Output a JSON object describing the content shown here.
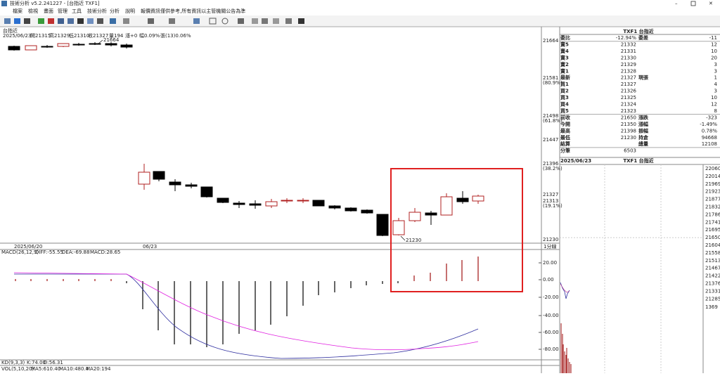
{
  "window": {
    "title": "技術分析 v5.2.241227 - [台指近 TXF1]"
  },
  "menu": [
    "檔案",
    "檢視",
    "畫面",
    "管理",
    "工具",
    "技術分析",
    "分析",
    "說明"
  ],
  "notice": "報價資訊僅供參考,所有資訊以主管機關公告為準",
  "chart": {
    "symbol": "台指近",
    "header": [
      "2025/06/23",
      "開21315",
      "高21329",
      "低21310",
      "收21327",
      "量194",
      "漲+0",
      "幅0.09%",
      "張(13)0.06%"
    ],
    "price_axis": [
      "21664",
      "21581",
      "(80.9%)",
      "21498",
      "(61.8%)",
      "21447",
      "21396",
      "(38.2%)",
      "21327",
      "21313",
      "(19.1%)",
      "21230"
    ],
    "high_label": "21664",
    "low_label": "21230",
    "dates": [
      "2025/06/20",
      "06/23"
    ],
    "period": "1分線"
  },
  "macd": {
    "label": [
      "MACD(26,12,9)",
      "DIFF:-55.55",
      "DEA:-69.88",
      "MACD:28.65"
    ],
    "axis": [
      "20.00",
      "0.00",
      "-20.00",
      "-40.00",
      "-60.00",
      "-80.00"
    ]
  },
  "kd": [
    "KD(9,3,3)",
    "K:74.00",
    "D:56.31"
  ],
  "vol": [
    "VOL(5,10,20)",
    "MA5:610.40",
    "MA10:480.4",
    "MA20:194"
  ],
  "quote": {
    "title": "TXF1 台指近",
    "rows": [
      {
        "a": "委比",
        "b": "-12.94%",
        "c": "委差",
        "d": "-11"
      },
      {
        "a": "賣5",
        "b": "21332",
        "d": "12"
      },
      {
        "a": "賣4",
        "b": "21331",
        "d": "10"
      },
      {
        "a": "賣3",
        "b": "21330",
        "d": "20"
      },
      {
        "a": "賣2",
        "b": "21329",
        "d": "3"
      },
      {
        "a": "賣1",
        "b": "21328",
        "d": "3"
      },
      {
        "a": "最新",
        "b": "21327",
        "c": "現張",
        "d": "1"
      },
      {
        "a": "買1",
        "b": "21327",
        "d": "4"
      },
      {
        "a": "買2",
        "b": "21326",
        "d": "3"
      },
      {
        "a": "買3",
        "b": "21325",
        "d": "10"
      },
      {
        "a": "買4",
        "b": "21324",
        "d": "12"
      },
      {
        "a": "買5",
        "b": "21323",
        "d": "8"
      },
      {
        "a": "前收",
        "b": "21650",
        "c": "漲跌",
        "d": "-323"
      },
      {
        "a": "今開",
        "b": "21350",
        "c": "漲幅",
        "d": "-1.49%"
      },
      {
        "a": "最高",
        "b": "21398",
        "c": "振幅",
        "d": "0.78%"
      },
      {
        "a": "最低",
        "b": "21230",
        "c": "持倉",
        "d": "94668"
      },
      {
        "a": "結算",
        "c": "總量",
        "d": "12108"
      },
      {
        "a": "分筆",
        "b": "6503"
      }
    ],
    "footer": [
      "2025/06/23",
      "TXF1 台指近"
    ]
  },
  "tick_axis": [
    "22060",
    "22014",
    "21969",
    "21923",
    "21877",
    "21832",
    "21786",
    "21741",
    "21695",
    "21650",
    "21604",
    "21558",
    "21513",
    "21467",
    "21422",
    "21376",
    "21331",
    "21285"
  ],
  "tick_volume": "1369"
}
